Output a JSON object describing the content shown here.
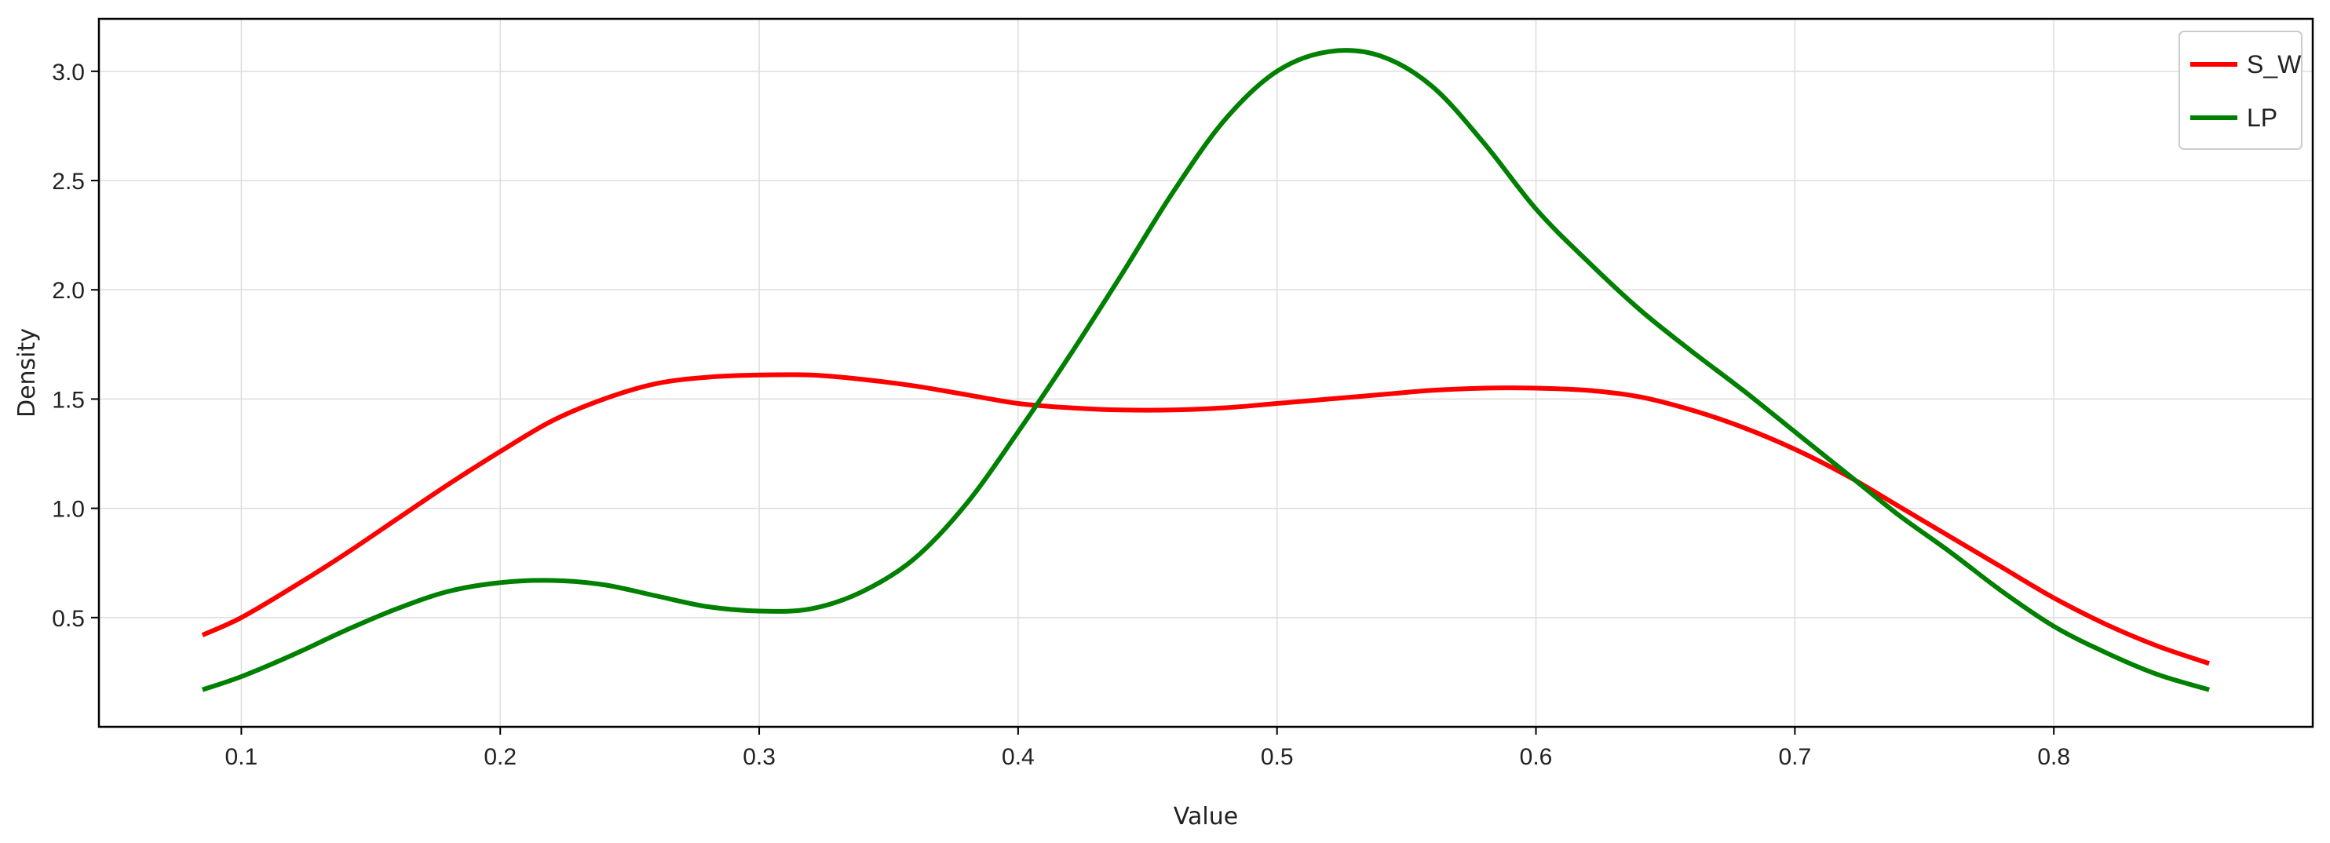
{
  "chart_data": {
    "type": "line",
    "title": "",
    "xlabel": "Value",
    "ylabel": "Density",
    "xlim": [
      0.045,
      0.9
    ],
    "ylim": [
      0.0,
      3.24
    ],
    "grid": true,
    "legend_position": "top-right",
    "xticks": [
      0.1,
      0.2,
      0.3,
      0.4,
      0.5,
      0.6,
      0.7,
      0.8
    ],
    "yticks": [
      0.5,
      1.0,
      1.5,
      2.0,
      2.5,
      3.0
    ],
    "series": [
      {
        "name": "S_W",
        "color": "#ff0000",
        "points": [
          [
            0.085,
            0.42
          ],
          [
            0.1,
            0.5
          ],
          [
            0.12,
            0.64
          ],
          [
            0.14,
            0.79
          ],
          [
            0.16,
            0.95
          ],
          [
            0.18,
            1.11
          ],
          [
            0.2,
            1.26
          ],
          [
            0.22,
            1.4
          ],
          [
            0.24,
            1.5
          ],
          [
            0.26,
            1.57
          ],
          [
            0.28,
            1.6
          ],
          [
            0.3,
            1.61
          ],
          [
            0.32,
            1.61
          ],
          [
            0.34,
            1.59
          ],
          [
            0.36,
            1.56
          ],
          [
            0.38,
            1.52
          ],
          [
            0.4,
            1.48
          ],
          [
            0.42,
            1.46
          ],
          [
            0.44,
            1.45
          ],
          [
            0.46,
            1.45
          ],
          [
            0.48,
            1.46
          ],
          [
            0.5,
            1.48
          ],
          [
            0.52,
            1.5
          ],
          [
            0.54,
            1.52
          ],
          [
            0.56,
            1.54
          ],
          [
            0.58,
            1.55
          ],
          [
            0.6,
            1.55
          ],
          [
            0.62,
            1.54
          ],
          [
            0.64,
            1.51
          ],
          [
            0.66,
            1.45
          ],
          [
            0.68,
            1.37
          ],
          [
            0.7,
            1.27
          ],
          [
            0.72,
            1.15
          ],
          [
            0.74,
            1.01
          ],
          [
            0.76,
            0.87
          ],
          [
            0.78,
            0.73
          ],
          [
            0.8,
            0.59
          ],
          [
            0.82,
            0.47
          ],
          [
            0.84,
            0.37
          ],
          [
            0.86,
            0.29
          ]
        ]
      },
      {
        "name": "LP",
        "color": "#008000",
        "points": [
          [
            0.085,
            0.17
          ],
          [
            0.1,
            0.23
          ],
          [
            0.12,
            0.33
          ],
          [
            0.14,
            0.44
          ],
          [
            0.16,
            0.54
          ],
          [
            0.18,
            0.62
          ],
          [
            0.2,
            0.66
          ],
          [
            0.22,
            0.67
          ],
          [
            0.24,
            0.65
          ],
          [
            0.26,
            0.6
          ],
          [
            0.28,
            0.55
          ],
          [
            0.3,
            0.53
          ],
          [
            0.32,
            0.54
          ],
          [
            0.34,
            0.62
          ],
          [
            0.36,
            0.77
          ],
          [
            0.38,
            1.02
          ],
          [
            0.4,
            1.35
          ],
          [
            0.42,
            1.7
          ],
          [
            0.44,
            2.07
          ],
          [
            0.46,
            2.45
          ],
          [
            0.48,
            2.78
          ],
          [
            0.5,
            3.0
          ],
          [
            0.52,
            3.09
          ],
          [
            0.54,
            3.07
          ],
          [
            0.56,
            2.93
          ],
          [
            0.58,
            2.67
          ],
          [
            0.6,
            2.37
          ],
          [
            0.62,
            2.13
          ],
          [
            0.64,
            1.91
          ],
          [
            0.66,
            1.72
          ],
          [
            0.68,
            1.54
          ],
          [
            0.7,
            1.35
          ],
          [
            0.72,
            1.16
          ],
          [
            0.74,
            0.97
          ],
          [
            0.76,
            0.8
          ],
          [
            0.78,
            0.62
          ],
          [
            0.8,
            0.46
          ],
          [
            0.82,
            0.34
          ],
          [
            0.84,
            0.24
          ],
          [
            0.86,
            0.17
          ]
        ]
      }
    ]
  }
}
